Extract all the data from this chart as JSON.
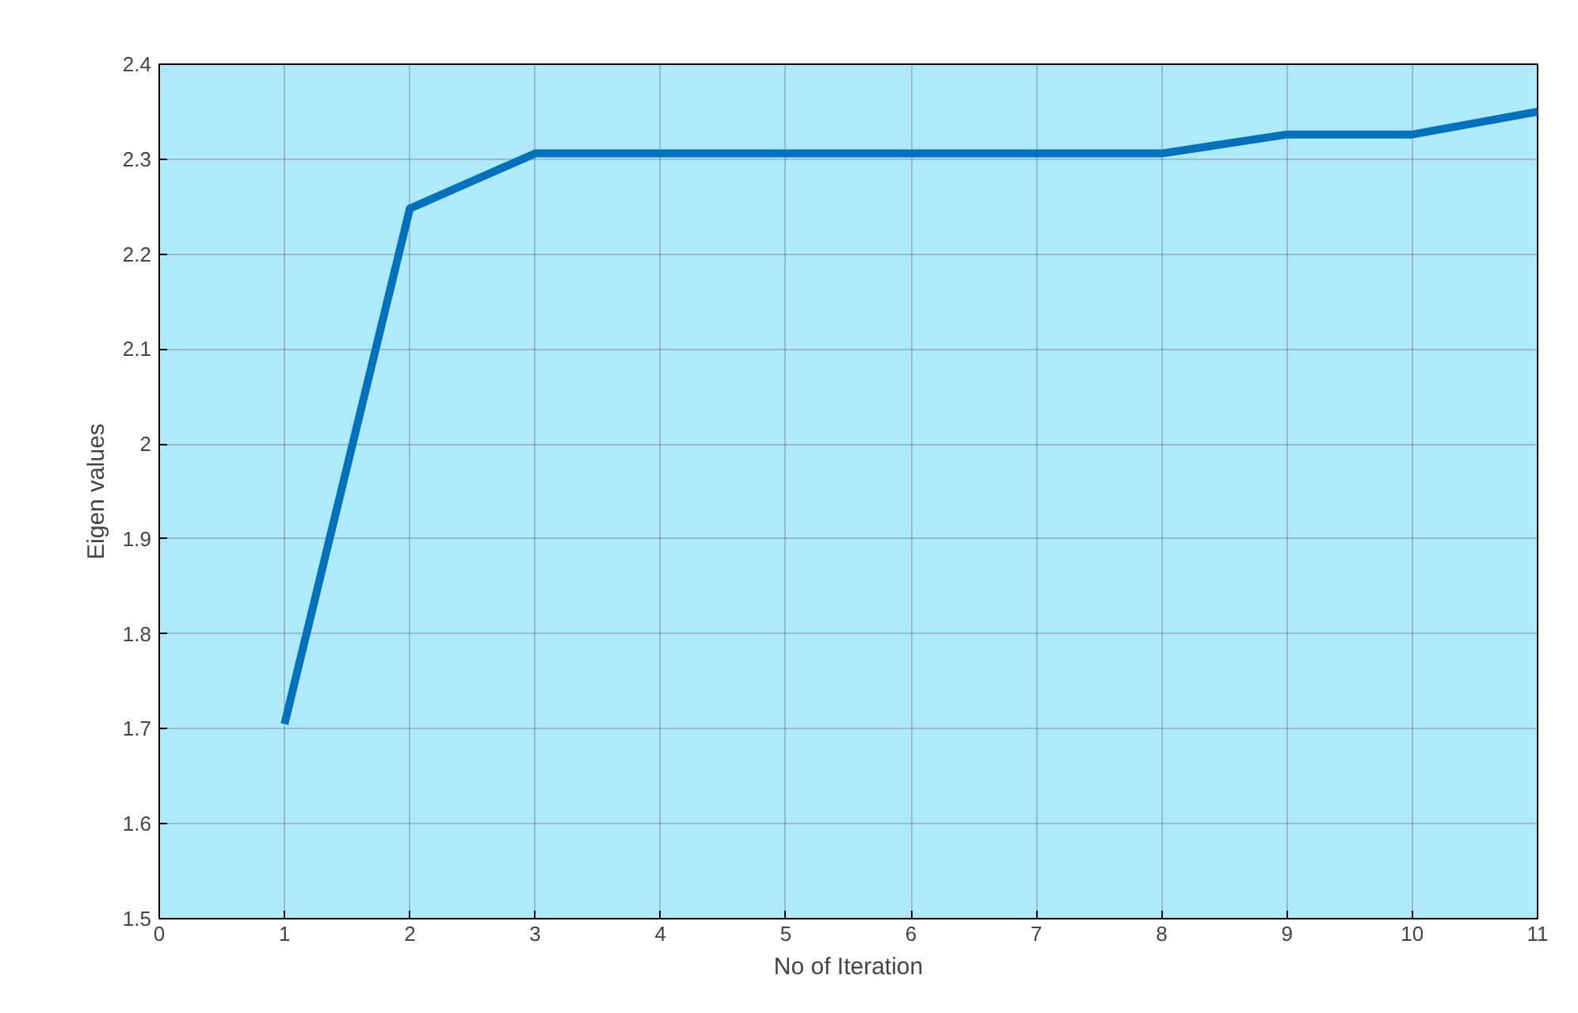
{
  "chart_data": {
    "type": "line",
    "xlabel": "No of Iteration",
    "ylabel": "Eigen values",
    "x": [
      1,
      2,
      3,
      4,
      5,
      6,
      7,
      8,
      9,
      10,
      11
    ],
    "series": [
      {
        "color": "#0072bd",
        "values": [
          1.705,
          2.248,
          2.306,
          2.306,
          2.306,
          2.306,
          2.306,
          2.306,
          2.326,
          2.326,
          2.35
        ]
      }
    ],
    "xlim": [
      0,
      11
    ],
    "ylim": [
      1.5,
      2.4
    ],
    "xticks": [
      0,
      1,
      2,
      3,
      4,
      5,
      6,
      7,
      8,
      9,
      10,
      11
    ],
    "yticks": [
      1.5,
      1.6,
      1.7,
      1.8,
      1.9,
      2,
      2.1,
      2.2,
      2.3,
      2.4
    ],
    "grid": true,
    "line_style": "solid"
  }
}
